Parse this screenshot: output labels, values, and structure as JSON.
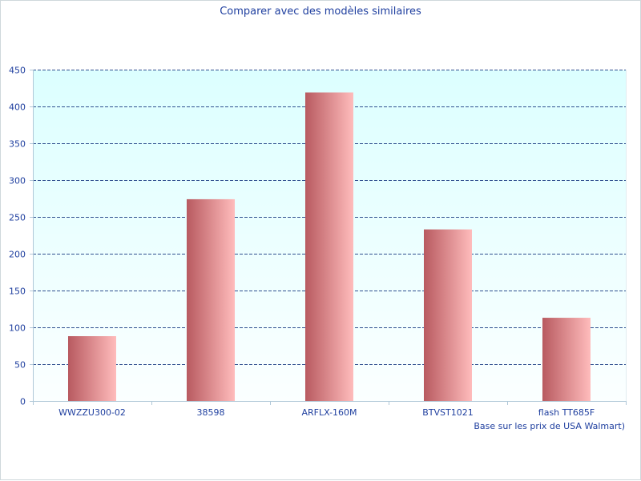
{
  "colors": {
    "plot_bg_top": "#dcffff",
    "plot_bg_bottom": "#fbffff",
    "grid": "#2f4f8f",
    "axis": "#b0c8d8",
    "text": "#1f3f9f",
    "bar_dark": "#b85a60",
    "bar_light": "#ffbcbc"
  },
  "chart_data": {
    "type": "bar",
    "title": "Comparer avec des modèles similaires",
    "categories": [
      "WWZZU300-02",
      "38598",
      "ARFLX-160M",
      "BTVST1021",
      "flash TT685F"
    ],
    "values": [
      88,
      274,
      419,
      233,
      113
    ],
    "ylim": [
      0,
      450
    ],
    "yticks": [
      0,
      50,
      100,
      150,
      200,
      250,
      300,
      350,
      400,
      450
    ],
    "grid": true,
    "footnote": "Base sur les prix de USA Walmart)"
  }
}
